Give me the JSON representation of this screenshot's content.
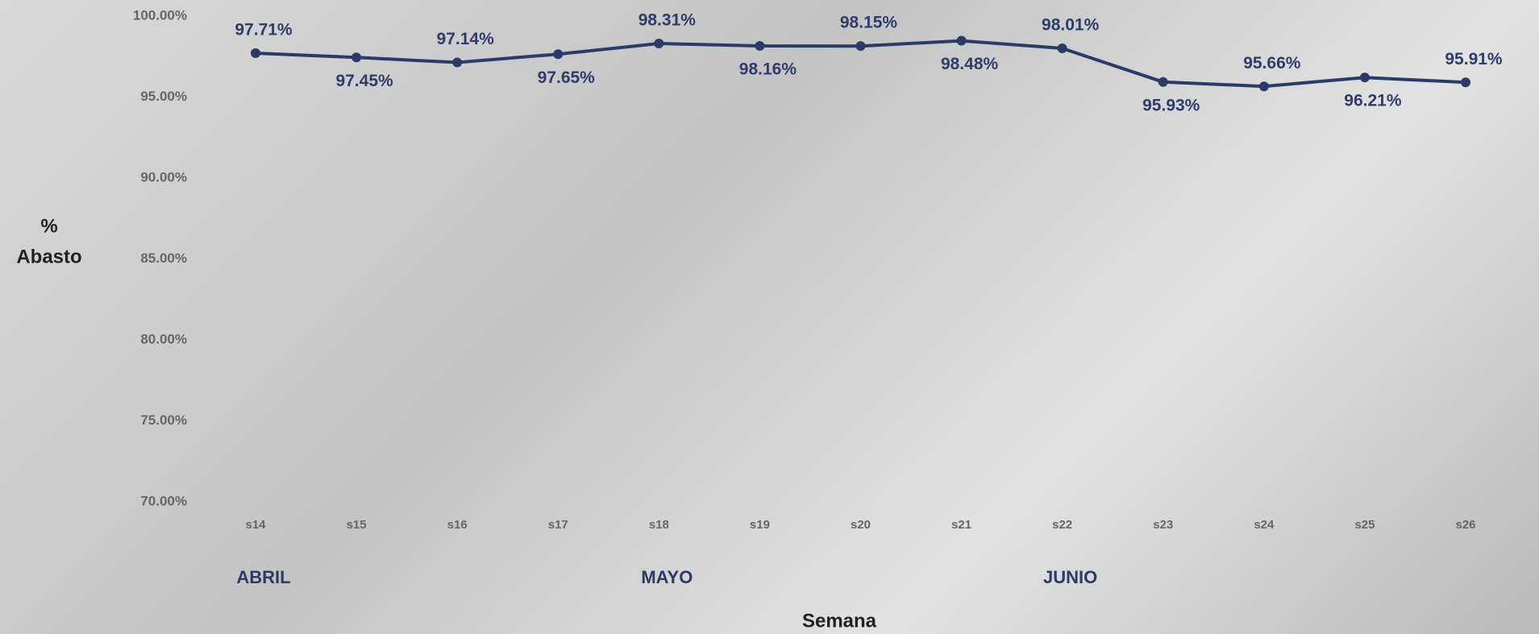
{
  "chart_data": {
    "type": "line",
    "x_label": "Semana",
    "y_label": [
      "%",
      "Abasto"
    ],
    "categories": [
      "s14",
      "s15",
      "s16",
      "s17",
      "s18",
      "s19",
      "s20",
      "s21",
      "s22",
      "s23",
      "s24",
      "s25",
      "s26"
    ],
    "series": [
      {
        "color": "#2b3a67",
        "values": [
          97.71,
          97.45,
          97.14,
          97.65,
          98.31,
          98.16,
          98.15,
          98.48,
          98.01,
          95.93,
          95.66,
          96.21,
          95.91
        ],
        "value_labels": [
          "97.71%",
          "97.45%",
          "97.14%",
          "97.65%",
          "98.31%",
          "98.16%",
          "98.15%",
          "98.48%",
          "98.01%",
          "95.93%",
          "95.66%",
          "96.21%",
          "95.91%"
        ]
      }
    ],
    "ylim": [
      70,
      100
    ],
    "yticks": [
      {
        "value": 70,
        "label": "70.00%"
      },
      {
        "value": 75,
        "label": "75.00%"
      },
      {
        "value": 80,
        "label": "80.00%"
      },
      {
        "value": 85,
        "label": "85.00%"
      },
      {
        "value": 90,
        "label": "90.00%"
      },
      {
        "value": 95,
        "label": "95.00%"
      },
      {
        "value": 100,
        "label": "100.00%"
      }
    ],
    "month_labels": [
      "ABRIL",
      "MAYO",
      "JUNIO"
    ],
    "grid": false
  }
}
